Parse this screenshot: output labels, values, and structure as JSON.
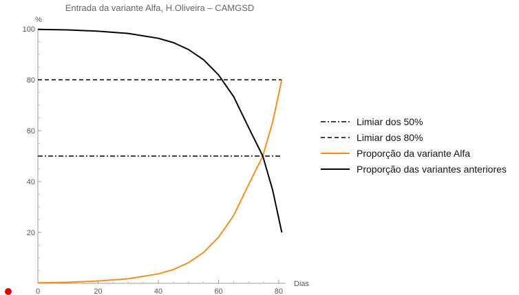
{
  "chart_data": {
    "type": "line",
    "title": "Entrada da variante Alfa, H.Oliveira – CAMGSD",
    "xlabel": "Dias",
    "ylabel": "%",
    "xlim": [
      0,
      82
    ],
    "ylim": [
      0,
      100
    ],
    "x_ticks": [
      0,
      20,
      40,
      60,
      80
    ],
    "y_ticks": [
      20,
      40,
      60,
      80,
      100
    ],
    "grid": false,
    "legend_position": "right",
    "series": [
      {
        "name": "Limiar dos 50%",
        "style": "dash-dot",
        "color": "#000000",
        "x": [
          0,
          81
        ],
        "y": [
          50,
          50
        ]
      },
      {
        "name": "Limiar dos 80%",
        "style": "dashed",
        "color": "#000000",
        "x": [
          0,
          81
        ],
        "y": [
          80,
          80
        ]
      },
      {
        "name": "Proporção da variante Alfa",
        "style": "solid",
        "color": "#f28e1c",
        "x": [
          0,
          10,
          20,
          30,
          40,
          45,
          50,
          55,
          60,
          65,
          70,
          74.7,
          78,
          81
        ],
        "y": [
          0.2,
          0.4,
          0.9,
          1.8,
          3.7,
          5.4,
          8.1,
          12.1,
          18.1,
          26.6,
          38.8,
          50,
          63.5,
          80
        ]
      },
      {
        "name": "Proporção das variantes anteriores",
        "style": "solid",
        "color": "#000000",
        "x": [
          0,
          10,
          20,
          30,
          40,
          45,
          50,
          55,
          60,
          65,
          70,
          74.7,
          78,
          81
        ],
        "y": [
          99.8,
          99.6,
          99.1,
          98.2,
          96.3,
          94.6,
          91.9,
          87.9,
          81.9,
          73.4,
          61.2,
          50,
          36.5,
          20
        ]
      }
    ]
  },
  "marker": {
    "color": "#e00000"
  }
}
